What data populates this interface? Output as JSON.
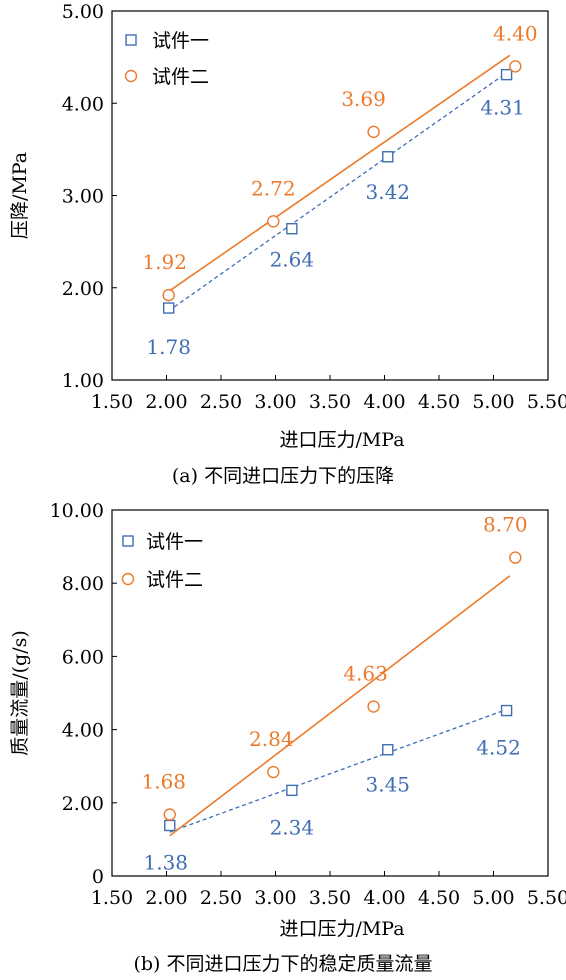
{
  "colors": {
    "series1": "#3f6eb5",
    "series2": "#ec7a2c",
    "frame": "#000000"
  },
  "chart_data": [
    {
      "type": "scatter",
      "caption": "(a) 不同进口压力下的压降",
      "xlabel": "进口压力/MPa",
      "ylabel": "压降/MPa",
      "xlim": [
        1.5,
        5.5
      ],
      "ylim": [
        1.0,
        5.0
      ],
      "x_ticks": [
        "1.50",
        "2.00",
        "2.50",
        "3.00",
        "3.50",
        "4.00",
        "4.50",
        "5.00",
        "5.50"
      ],
      "y_ticks": [
        "1.00",
        "2.00",
        "3.00",
        "4.00",
        "5.00"
      ],
      "legend_position": "top-left",
      "series": [
        {
          "name": "试件一",
          "marker": "square",
          "line": "dashed",
          "x": [
            2.02,
            3.15,
            4.03,
            5.12
          ],
          "y": [
            1.78,
            2.64,
            3.42,
            4.31
          ],
          "labels": [
            "1.78",
            "2.64",
            "3.42",
            "4.31"
          ],
          "fit": [
            [
              2.02,
              1.75
            ],
            [
              5.12,
              4.33
            ]
          ]
        },
        {
          "name": "试件二",
          "marker": "circle",
          "line": "solid",
          "x": [
            2.02,
            2.98,
            3.9,
            5.2
          ],
          "y": [
            1.92,
            2.72,
            3.69,
            4.4
          ],
          "labels": [
            "1.92",
            "2.72",
            "3.69",
            "4.40"
          ],
          "fit": [
            [
              2.02,
              1.96
            ],
            [
              5.15,
              4.52
            ]
          ]
        }
      ]
    },
    {
      "type": "scatter",
      "caption": "(b) 不同进口压力下的稳定质量流量",
      "xlabel": "进口压力/MPa",
      "ylabel": "质量流量/(g/s)",
      "xlim": [
        1.5,
        5.5
      ],
      "ylim": [
        0,
        10.0
      ],
      "x_ticks": [
        "1.50",
        "2.00",
        "2.50",
        "3.00",
        "3.50",
        "4.00",
        "4.50",
        "5.00",
        "5.50"
      ],
      "y_ticks": [
        "0",
        "2.00",
        "4.00",
        "6.00",
        "8.00",
        "10.00"
      ],
      "legend_position": "top-left",
      "series": [
        {
          "name": "试件一",
          "marker": "square",
          "line": "dashed",
          "x": [
            2.03,
            3.15,
            4.03,
            5.12
          ],
          "y": [
            1.38,
            2.34,
            3.45,
            4.52
          ],
          "labels": [
            "1.38",
            "2.34",
            "3.45",
            "4.52"
          ],
          "fit": [
            [
              2.03,
              1.2
            ],
            [
              5.12,
              4.55
            ]
          ]
        },
        {
          "name": "试件二",
          "marker": "circle",
          "line": "solid",
          "x": [
            2.03,
            2.98,
            3.9,
            5.2
          ],
          "y": [
            1.68,
            2.84,
            4.63,
            8.7
          ],
          "labels": [
            "1.68",
            "2.84",
            "4.63",
            "8.70"
          ],
          "fit": [
            [
              2.03,
              1.1
            ],
            [
              5.15,
              8.2
            ]
          ]
        }
      ]
    }
  ]
}
